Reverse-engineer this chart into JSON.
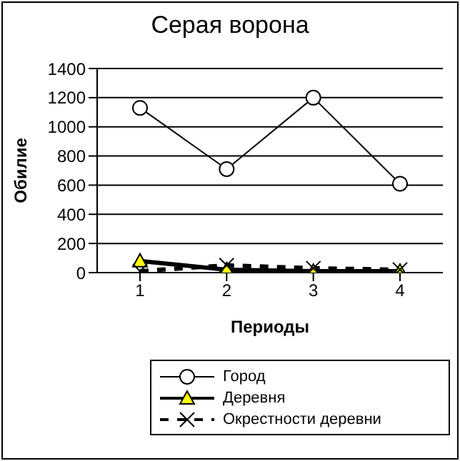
{
  "chart_data": {
    "type": "line",
    "title": "Серая ворона",
    "xlabel": "Периоды",
    "ylabel": "Обилие",
    "categories": [
      "1",
      "2",
      "3",
      "4"
    ],
    "series": [
      {
        "name": "Город",
        "color": "#000000",
        "marker": "circle",
        "line_style": "solid",
        "values": [
          1130,
          710,
          1200,
          610
        ]
      },
      {
        "name": "Деревня",
        "color": "#000000",
        "marker": "triangle",
        "line_style": "solid",
        "values": [
          80,
          20,
          10,
          10
        ]
      },
      {
        "name": "Окрестности деревни",
        "color": "#000000",
        "marker": "cross",
        "line_style": "dashed",
        "values": [
          10,
          50,
          30,
          20
        ]
      }
    ],
    "ylim": [
      0,
      1400
    ],
    "yticks": [
      0,
      200,
      400,
      600,
      800,
      1000,
      1200,
      1400
    ],
    "grid": "y",
    "legend": "bottom"
  }
}
